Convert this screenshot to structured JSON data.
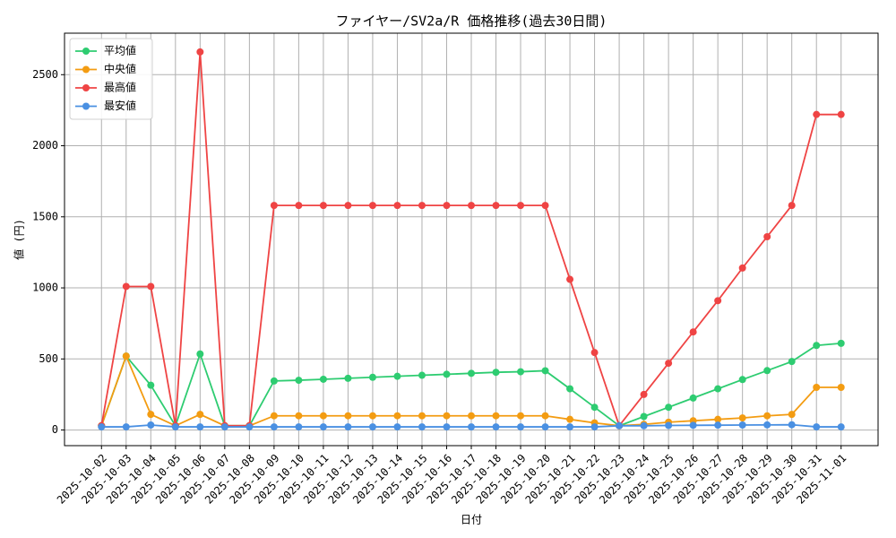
{
  "chart_data": {
    "type": "line",
    "title": "ファイヤー/SV2a/R 価格推移(過去30日間)",
    "x_label": "日付",
    "y_label": "値 (円)",
    "categories": [
      "2025-10-02",
      "2025-10-03",
      "2025-10-04",
      "2025-10-05",
      "2025-10-06",
      "2025-10-07",
      "2025-10-08",
      "2025-10-09",
      "2025-10-10",
      "2025-10-11",
      "2025-10-12",
      "2025-10-13",
      "2025-10-14",
      "2025-10-15",
      "2025-10-16",
      "2025-10-17",
      "2025-10-18",
      "2025-10-19",
      "2025-10-20",
      "2025-10-21",
      "2025-10-22",
      "2025-10-23",
      "2025-10-24",
      "2025-10-25",
      "2025-10-26",
      "2025-10-27",
      "2025-10-28",
      "2025-10-29",
      "2025-10-30",
      "2025-10-31",
      "2025-11-01"
    ],
    "series": [
      {
        "name": "平均値",
        "color": "#2ecc71",
        "values": [
          30,
          520,
          315,
          30,
          535,
          30,
          30,
          345,
          350,
          357,
          364,
          371,
          378,
          385,
          392,
          399,
          406,
          410,
          417,
          290,
          160,
          30,
          95,
          160,
          225,
          290,
          355,
          418,
          482,
          595,
          610
        ]
      },
      {
        "name": "中央値",
        "color": "#f39c12",
        "values": [
          30,
          520,
          110,
          30,
          110,
          30,
          30,
          100,
          100,
          100,
          100,
          100,
          100,
          100,
          100,
          100,
          100,
          100,
          100,
          75,
          50,
          30,
          40,
          55,
          65,
          75,
          85,
          100,
          110,
          300,
          300
        ]
      },
      {
        "name": "最高値",
        "color": "#ef4444",
        "values": [
          30,
          1010,
          1010,
          30,
          2660,
          30,
          30,
          1580,
          1580,
          1580,
          1580,
          1580,
          1580,
          1580,
          1580,
          1580,
          1580,
          1580,
          1580,
          1060,
          545,
          30,
          250,
          470,
          690,
          910,
          1140,
          1360,
          1580,
          2220,
          2220
        ]
      },
      {
        "name": "最安値",
        "color": "#4a90e2",
        "values": [
          22,
          22,
          35,
          22,
          22,
          22,
          22,
          22,
          22,
          22,
          22,
          22,
          22,
          22,
          22,
          22,
          22,
          22,
          22,
          22,
          22,
          30,
          30,
          32,
          33,
          34,
          35,
          36,
          37,
          22,
          22
        ]
      }
    ],
    "ylim": [
      -110,
      2792
    ],
    "yticks": [
      0,
      500,
      1000,
      1500,
      2000,
      2500
    ],
    "grid": true,
    "legend": "upper-left"
  }
}
